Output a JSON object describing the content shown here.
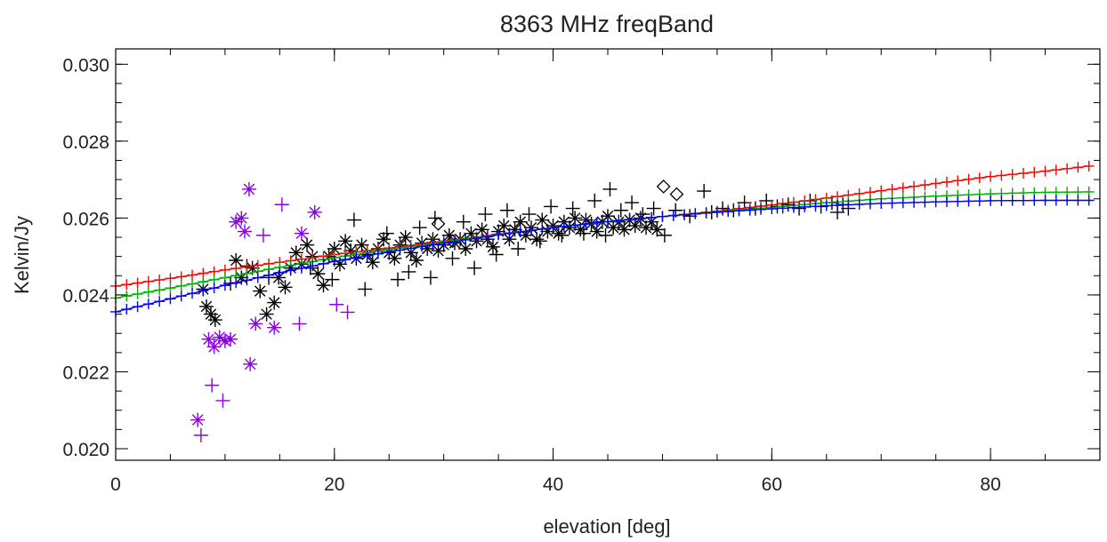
{
  "chart_data": {
    "type": "scatter",
    "title": "8363 MHz freqBand",
    "xlabel": "elevation [deg]",
    "ylabel": "Kelvin/Jy",
    "xlim": [
      0,
      90
    ],
    "ylim": [
      0.0197,
      0.0304
    ],
    "xticks": [
      {
        "value": 0,
        "label": "0"
      },
      {
        "value": 20,
        "label": "20"
      },
      {
        "value": 40,
        "label": "40"
      },
      {
        "value": 60,
        "label": "60"
      },
      {
        "value": 80,
        "label": "80"
      }
    ],
    "yticks": [
      {
        "value": 0.02,
        "label": "0.020"
      },
      {
        "value": 0.022,
        "label": "0.022"
      },
      {
        "value": 0.024,
        "label": "0.024"
      },
      {
        "value": 0.026,
        "label": "0.026"
      },
      {
        "value": 0.028,
        "label": "0.028"
      },
      {
        "value": 0.03,
        "label": "0.030"
      }
    ],
    "x_minor_step": 5,
    "y_minor_step": 0.0005,
    "grid": false,
    "series": [
      {
        "marker": "plus",
        "color": "#ff0000",
        "line": true,
        "points": [
          [
            0,
            0.02423
          ],
          [
            5,
            0.02443
          ],
          [
            10,
            0.02465
          ],
          [
            15,
            0.02485
          ],
          [
            20,
            0.02505
          ],
          [
            25,
            0.02522
          ],
          [
            30,
            0.0254
          ],
          [
            35,
            0.02558
          ],
          [
            40,
            0.02575
          ],
          [
            45,
            0.0259
          ],
          [
            50,
            0.02604
          ],
          [
            55,
            0.02618
          ],
          [
            60,
            0.02634
          ],
          [
            65,
            0.02652
          ],
          [
            70,
            0.02671
          ],
          [
            75,
            0.0269
          ],
          [
            80,
            0.02708
          ],
          [
            85,
            0.02722
          ],
          [
            89,
            0.02735
          ]
        ]
      },
      {
        "marker": "plus",
        "color": "#00b000",
        "line": true,
        "points": [
          [
            0,
            0.02392
          ],
          [
            5,
            0.02418
          ],
          [
            10,
            0.02445
          ],
          [
            15,
            0.02472
          ],
          [
            20,
            0.02497
          ],
          [
            25,
            0.02518
          ],
          [
            30,
            0.02538
          ],
          [
            35,
            0.02557
          ],
          [
            40,
            0.02575
          ],
          [
            45,
            0.0259
          ],
          [
            50,
            0.02604
          ],
          [
            55,
            0.02616
          ],
          [
            60,
            0.02628
          ],
          [
            65,
            0.0264
          ],
          [
            70,
            0.0265
          ],
          [
            75,
            0.02657
          ],
          [
            80,
            0.02663
          ],
          [
            85,
            0.02667
          ],
          [
            89,
            0.02668
          ]
        ]
      },
      {
        "marker": "plus",
        "color": "#0000ff",
        "line": true,
        "points": [
          [
            0,
            0.02356
          ],
          [
            5,
            0.0239
          ],
          [
            10,
            0.02425
          ],
          [
            15,
            0.02458
          ],
          [
            20,
            0.02487
          ],
          [
            25,
            0.02512
          ],
          [
            30,
            0.02535
          ],
          [
            35,
            0.02556
          ],
          [
            40,
            0.02575
          ],
          [
            45,
            0.02591
          ],
          [
            50,
            0.02604
          ],
          [
            55,
            0.02615
          ],
          [
            60,
            0.02624
          ],
          [
            65,
            0.02632
          ],
          [
            70,
            0.02638
          ],
          [
            75,
            0.02642
          ],
          [
            80,
            0.02645
          ],
          [
            85,
            0.02646
          ],
          [
            89,
            0.02646
          ]
        ]
      },
      {
        "marker": "asterisk",
        "color": "#8a00e6",
        "line": false,
        "points": [
          [
            7.5,
            0.02075
          ],
          [
            8.5,
            0.02285
          ],
          [
            9.0,
            0.02265
          ],
          [
            9.5,
            0.0229
          ],
          [
            10.0,
            0.0228
          ],
          [
            10.5,
            0.02285
          ],
          [
            11.0,
            0.0259
          ],
          [
            11.5,
            0.026
          ],
          [
            11.8,
            0.02565
          ],
          [
            12.2,
            0.02675
          ],
          [
            12.3,
            0.0222
          ],
          [
            12.8,
            0.02325
          ],
          [
            14.5,
            0.02315
          ],
          [
            17.0,
            0.0256
          ],
          [
            18.2,
            0.02615
          ]
        ]
      },
      {
        "marker": "plus",
        "color": "#8a00e6",
        "line": false,
        "points": [
          [
            7.8,
            0.02035
          ],
          [
            8.8,
            0.02165
          ],
          [
            9.8,
            0.02125
          ],
          [
            13.5,
            0.02555
          ],
          [
            15.2,
            0.02635
          ],
          [
            16.8,
            0.02325
          ],
          [
            20.2,
            0.02375
          ],
          [
            21.2,
            0.02355
          ]
        ]
      },
      {
        "marker": "asterisk",
        "color": "#000000",
        "line": false,
        "points": [
          [
            8.0,
            0.02415
          ],
          [
            8.3,
            0.0237
          ],
          [
            8.7,
            0.0235
          ],
          [
            9.1,
            0.02335
          ],
          [
            11.0,
            0.0249
          ],
          [
            11.5,
            0.02445
          ],
          [
            12.5,
            0.0247
          ],
          [
            13.2,
            0.0241
          ],
          [
            13.8,
            0.0235
          ],
          [
            14.5,
            0.0238
          ],
          [
            14.9,
            0.02445
          ],
          [
            15.5,
            0.0242
          ],
          [
            16.0,
            0.0247
          ],
          [
            16.5,
            0.0251
          ],
          [
            17.0,
            0.0248
          ],
          [
            17.5,
            0.0253
          ],
          [
            18.0,
            0.025
          ],
          [
            18.5,
            0.02455
          ],
          [
            19.0,
            0.02425
          ],
          [
            19.5,
            0.025
          ],
          [
            20.0,
            0.0252
          ],
          [
            20.5,
            0.0248
          ],
          [
            21.0,
            0.0254
          ],
          [
            21.5,
            0.02515
          ],
          [
            22.0,
            0.02495
          ],
          [
            22.5,
            0.0253
          ],
          [
            23.0,
            0.02505
          ],
          [
            23.5,
            0.02485
          ],
          [
            24.0,
            0.0252
          ],
          [
            24.5,
            0.02545
          ],
          [
            25.0,
            0.0251
          ],
          [
            25.5,
            0.02495
          ],
          [
            26.0,
            0.0253
          ],
          [
            26.5,
            0.0255
          ],
          [
            27.0,
            0.0251
          ],
          [
            27.5,
            0.0249
          ],
          [
            28.0,
            0.02535
          ],
          [
            28.5,
            0.0252
          ],
          [
            29.0,
            0.02545
          ],
          [
            29.5,
            0.02515
          ],
          [
            30.0,
            0.0253
          ],
          [
            30.5,
            0.02555
          ],
          [
            31.0,
            0.02535
          ],
          [
            31.5,
            0.02545
          ],
          [
            32.0,
            0.0252
          ],
          [
            32.5,
            0.0256
          ],
          [
            33.0,
            0.0254
          ],
          [
            33.5,
            0.0257
          ],
          [
            34.0,
            0.02545
          ],
          [
            34.5,
            0.02525
          ],
          [
            35.0,
            0.02565
          ],
          [
            35.5,
            0.0258
          ],
          [
            36.0,
            0.02545
          ],
          [
            36.5,
            0.0257
          ],
          [
            37.0,
            0.0259
          ],
          [
            37.5,
            0.02555
          ],
          [
            38.0,
            0.02575
          ],
          [
            38.5,
            0.02545
          ],
          [
            39.0,
            0.02595
          ],
          [
            39.5,
            0.02565
          ],
          [
            40.0,
            0.0258
          ],
          [
            40.5,
            0.0256
          ],
          [
            41.0,
            0.0259
          ],
          [
            41.5,
            0.02575
          ],
          [
            42.0,
            0.026
          ],
          [
            42.5,
            0.0257
          ],
          [
            43.0,
            0.02595
          ],
          [
            43.5,
            0.02585
          ],
          [
            44.0,
            0.02565
          ],
          [
            44.5,
            0.0259
          ],
          [
            45.0,
            0.02605
          ],
          [
            45.5,
            0.02575
          ],
          [
            46.0,
            0.0259
          ],
          [
            46.5,
            0.0257
          ],
          [
            47.0,
            0.02595
          ],
          [
            47.5,
            0.0258
          ],
          [
            48.0,
            0.026
          ],
          [
            48.5,
            0.02575
          ],
          [
            49.0,
            0.0259
          ],
          [
            49.5,
            0.0257
          ]
        ]
      },
      {
        "marker": "plus",
        "color": "#000000",
        "line": false,
        "points": [
          [
            10.5,
            0.0243
          ],
          [
            12.0,
            0.02475
          ],
          [
            14.0,
            0.02445
          ],
          [
            17.8,
            0.0247
          ],
          [
            19.8,
            0.0244
          ],
          [
            21.8,
            0.02595
          ],
          [
            22.8,
            0.02415
          ],
          [
            24.8,
            0.0256
          ],
          [
            25.8,
            0.0244
          ],
          [
            26.8,
            0.0246
          ],
          [
            27.8,
            0.02575
          ],
          [
            28.8,
            0.02445
          ],
          [
            29.2,
            0.026
          ],
          [
            30.8,
            0.02495
          ],
          [
            31.8,
            0.0259
          ],
          [
            32.8,
            0.0247
          ],
          [
            33.8,
            0.0261
          ],
          [
            34.8,
            0.02505
          ],
          [
            35.8,
            0.0262
          ],
          [
            36.8,
            0.0252
          ],
          [
            37.8,
            0.0261
          ],
          [
            38.8,
            0.0254
          ],
          [
            39.8,
            0.0263
          ],
          [
            40.8,
            0.02555
          ],
          [
            41.8,
            0.02625
          ],
          [
            42.8,
            0.0256
          ],
          [
            43.8,
            0.02645
          ],
          [
            44.8,
            0.02555
          ],
          [
            45.2,
            0.02675
          ],
          [
            46.2,
            0.0262
          ],
          [
            47.2,
            0.0264
          ],
          [
            48.2,
            0.0261
          ],
          [
            49.2,
            0.02625
          ],
          [
            50.2,
            0.02555
          ],
          [
            51.2,
            0.0262
          ],
          [
            52.5,
            0.02605
          ],
          [
            53.8,
            0.0267
          ],
          [
            54.5,
            0.02615
          ],
          [
            55.5,
            0.02625
          ],
          [
            56.5,
            0.0262
          ],
          [
            57.5,
            0.0264
          ],
          [
            58.5,
            0.02625
          ],
          [
            59.5,
            0.02645
          ],
          [
            60.5,
            0.0263
          ],
          [
            61.5,
            0.02635
          ],
          [
            62.5,
            0.02625
          ],
          [
            63.5,
            0.02645
          ],
          [
            64.5,
            0.0263
          ],
          [
            65.5,
            0.0264
          ],
          [
            66.0,
            0.02615
          ],
          [
            66.5,
            0.02635
          ],
          [
            67.0,
            0.02625
          ]
        ]
      },
      {
        "marker": "diamond",
        "color": "#000000",
        "line": false,
        "points": [
          [
            50.1,
            0.02682
          ],
          [
            51.3,
            0.02662
          ],
          [
            29.5,
            0.02585
          ],
          [
            30.8,
            0.0254
          ]
        ]
      }
    ]
  }
}
